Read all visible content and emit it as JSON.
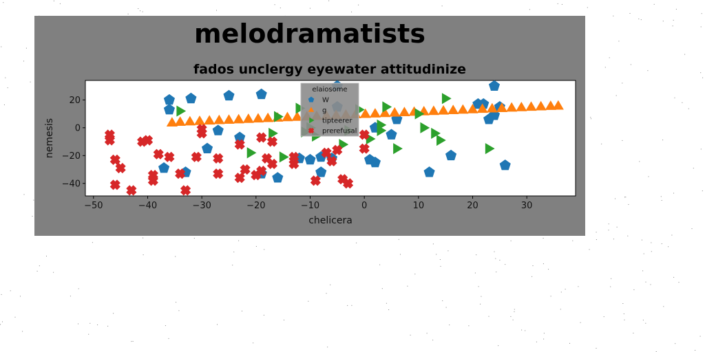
{
  "chart_data": {
    "type": "scatter",
    "title": "melodramatists",
    "subtitle": "fados unclergy eyewater attitudinize",
    "xlabel": "chelicera",
    "ylabel": "nemesis",
    "xlim": [
      -51.5,
      39
    ],
    "ylim": [
      -49,
      34
    ],
    "xticks": [
      -50,
      -40,
      -30,
      -20,
      -10,
      0,
      10,
      20,
      30
    ],
    "yticks": [
      -40,
      -20,
      0,
      20
    ],
    "grid": false,
    "legend": {
      "title": "elaiosome",
      "placement": "top-center"
    },
    "colors": {
      "figure_bg": "#808080",
      "plot_bg": "#ffffff"
    },
    "series": [
      {
        "name": "W",
        "marker": "pentagon",
        "color": "#1f77b4",
        "points": [
          [
            -36,
            20
          ],
          [
            -36,
            13
          ],
          [
            -32,
            21
          ],
          [
            -25,
            23
          ],
          [
            -19,
            24
          ],
          [
            -37,
            -29
          ],
          [
            -33,
            -32
          ],
          [
            -29,
            -15
          ],
          [
            -27,
            -2
          ],
          [
            -23,
            -7
          ],
          [
            -19,
            -33
          ],
          [
            -16,
            -36
          ],
          [
            -12,
            -22
          ],
          [
            -10,
            -23
          ],
          [
            -8,
            -32
          ],
          [
            -8,
            -21
          ],
          [
            -6,
            -22
          ],
          [
            -5,
            15
          ],
          [
            -5,
            30
          ],
          [
            1,
            -23
          ],
          [
            2,
            -25
          ],
          [
            2,
            0
          ],
          [
            5,
            -5
          ],
          [
            6,
            6
          ],
          [
            12,
            -32
          ],
          [
            16,
            -20
          ],
          [
            21,
            17
          ],
          [
            22,
            17
          ],
          [
            23,
            6
          ],
          [
            24,
            30
          ],
          [
            24,
            9
          ],
          [
            25,
            15
          ],
          [
            26,
            -27
          ]
        ]
      },
      {
        "name": "g",
        "marker": "triangle-up",
        "color": "#ff7f0e",
        "points": [
          [
            -35.5,
            3.5
          ],
          [
            -34,
            4.0
          ],
          [
            -32.2,
            4.3
          ],
          [
            -30.4,
            4.6
          ],
          [
            -28.6,
            4.9
          ],
          [
            -26.8,
            5.2
          ],
          [
            -25,
            5.5
          ],
          [
            -23.2,
            5.8
          ],
          [
            -21.4,
            6.1
          ],
          [
            -19.6,
            6.4
          ],
          [
            -17.8,
            6.7
          ],
          [
            -16,
            7.0
          ],
          [
            -14.2,
            7.3
          ],
          [
            -12.4,
            7.6
          ],
          [
            -10.6,
            7.9
          ],
          [
            -8.8,
            8.2
          ],
          [
            -7,
            8.5
          ],
          [
            -5.2,
            8.8
          ],
          [
            -3.4,
            9.1
          ],
          [
            -1.6,
            9.4
          ],
          [
            0.2,
            9.7
          ],
          [
            2,
            10.0
          ],
          [
            3.8,
            10.3
          ],
          [
            5.6,
            10.6
          ],
          [
            7.4,
            10.9
          ],
          [
            9.2,
            11.2
          ],
          [
            11,
            11.5
          ],
          [
            12.8,
            11.8
          ],
          [
            14.6,
            12.1
          ],
          [
            16.4,
            12.4
          ],
          [
            18.2,
            12.7
          ],
          [
            20,
            13.0
          ],
          [
            21.8,
            13.3
          ],
          [
            23.6,
            13.6
          ],
          [
            25.4,
            13.9
          ],
          [
            27.2,
            14.2
          ],
          [
            29,
            14.5
          ],
          [
            30.8,
            14.8
          ],
          [
            32.6,
            15.1
          ],
          [
            34.4,
            15.4
          ],
          [
            35.8,
            15.6
          ]
        ]
      },
      {
        "name": "tipteerer",
        "marker": "triangle-right",
        "color": "#2ca02c",
        "points": [
          [
            -34,
            12
          ],
          [
            -21,
            -18
          ],
          [
            -17,
            -4
          ],
          [
            -16,
            8
          ],
          [
            -15,
            -21
          ],
          [
            -12,
            14
          ],
          [
            -11,
            -3
          ],
          [
            -10,
            0
          ],
          [
            -9,
            -6
          ],
          [
            -4,
            -12
          ],
          [
            -3,
            -2
          ],
          [
            -1,
            13
          ],
          [
            1,
            -8
          ],
          [
            3,
            -2
          ],
          [
            3,
            2
          ],
          [
            4,
            15
          ],
          [
            6,
            -15
          ],
          [
            10,
            10
          ],
          [
            11,
            0
          ],
          [
            13,
            -4
          ],
          [
            14,
            -9
          ],
          [
            15,
            21
          ],
          [
            23,
            -15
          ]
        ]
      },
      {
        "name": "prerefusal",
        "marker": "x-filled",
        "color": "#d62728",
        "points": [
          [
            -47,
            -5
          ],
          [
            -47,
            -9
          ],
          [
            -46,
            -23
          ],
          [
            -46,
            -41
          ],
          [
            -45,
            -29
          ],
          [
            -43,
            -45
          ],
          [
            -41,
            -10
          ],
          [
            -40,
            -9
          ],
          [
            -40,
            -9
          ],
          [
            -39,
            -38
          ],
          [
            -39,
            -34
          ],
          [
            -38,
            -19
          ],
          [
            -36,
            -21
          ],
          [
            -34,
            -33
          ],
          [
            -33,
            -45
          ],
          [
            -31,
            -21
          ],
          [
            -30,
            -4
          ],
          [
            -30,
            -1
          ],
          [
            -27,
            -33
          ],
          [
            -27,
            -22
          ],
          [
            -23,
            -12
          ],
          [
            -23,
            -36
          ],
          [
            -22,
            -30
          ],
          [
            -20,
            -34
          ],
          [
            -19,
            -31
          ],
          [
            -19,
            -7
          ],
          [
            -18,
            -22
          ],
          [
            -17,
            -26
          ],
          [
            -17,
            -10
          ],
          [
            -13,
            -26
          ],
          [
            -13,
            -21
          ],
          [
            -9,
            -38
          ],
          [
            -7,
            -18
          ],
          [
            -6,
            -24
          ],
          [
            -5,
            -16
          ],
          [
            -4,
            -37
          ],
          [
            -3,
            -40
          ],
          [
            0,
            -15
          ],
          [
            0,
            -5
          ]
        ]
      }
    ]
  }
}
